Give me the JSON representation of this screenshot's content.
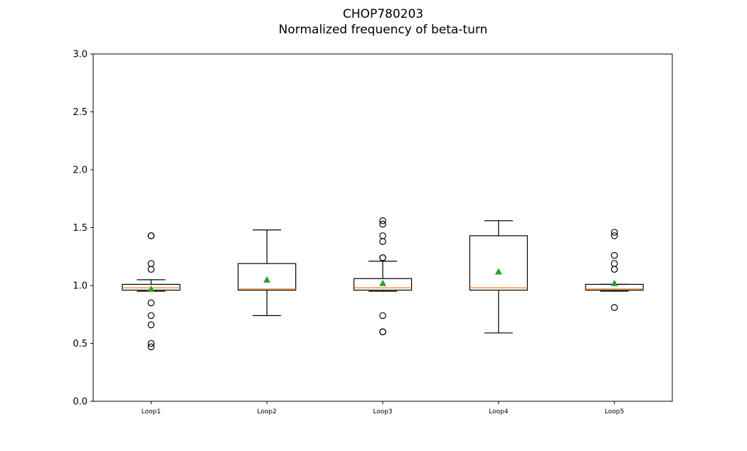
{
  "chart_data": {
    "type": "box",
    "title": "CHOP780203",
    "subtitle": "Normalized frequency of beta-turn",
    "xlabel": "",
    "ylabel": "",
    "ylim": [
      0.0,
      3.0
    ],
    "yticks": [
      "0.0",
      "0.5",
      "1.0",
      "1.5",
      "2.0",
      "2.5",
      "3.0"
    ],
    "grid": false,
    "categories": [
      "Loop1",
      "Loop2",
      "Loop3",
      "Loop4",
      "Loop5"
    ],
    "boxes": [
      {
        "label": "Loop1",
        "whisker_low": 0.95,
        "q1": 0.96,
        "median": 0.98,
        "q3": 1.01,
        "whisker_high": 1.05,
        "mean": 0.97,
        "outliers": [
          1.43,
          1.43,
          1.19,
          1.14,
          0.85,
          0.74,
          0.66,
          0.5,
          0.47
        ]
      },
      {
        "label": "Loop2",
        "whisker_low": 0.74,
        "q1": 0.96,
        "median": 0.97,
        "q3": 1.19,
        "whisker_high": 1.48,
        "mean": 1.05,
        "outliers": []
      },
      {
        "label": "Loop3",
        "whisker_low": 0.95,
        "q1": 0.96,
        "median": 0.98,
        "q3": 1.06,
        "whisker_high": 1.21,
        "mean": 1.02,
        "outliers": [
          1.56,
          1.53,
          1.43,
          1.38,
          1.24,
          1.24,
          0.74,
          0.6,
          0.6
        ]
      },
      {
        "label": "Loop4",
        "whisker_low": 0.59,
        "q1": 0.96,
        "median": 0.98,
        "q3": 1.43,
        "whisker_high": 1.56,
        "mean": 1.12,
        "outliers": []
      },
      {
        "label": "Loop5",
        "whisker_low": 0.95,
        "q1": 0.96,
        "median": 0.97,
        "q3": 1.01,
        "whisker_high": 1.01,
        "mean": 1.02,
        "outliers": [
          1.46,
          1.43,
          1.26,
          1.19,
          1.14,
          0.81
        ]
      }
    ],
    "colors": {
      "box": "#000000",
      "median": "#ff7f0e",
      "mean": "#2ca02c",
      "outlier": "#000000"
    }
  }
}
